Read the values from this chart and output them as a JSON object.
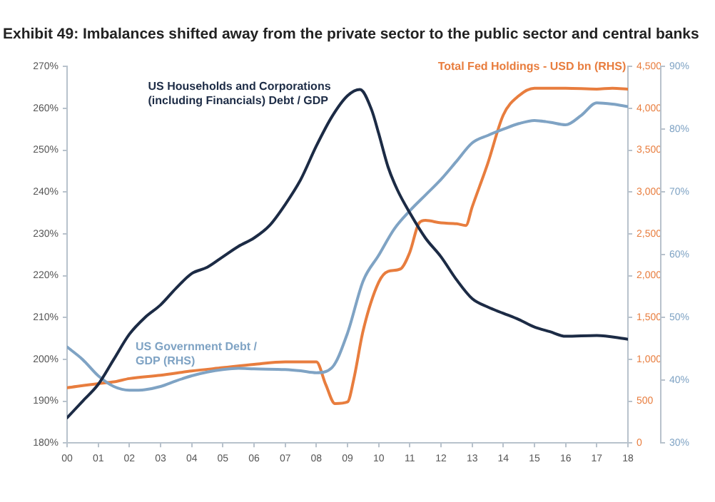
{
  "chart_data": {
    "type": "line",
    "title": "Exhibit 49: Imbalances shifted away from the private sector to the public sector and central banks",
    "xlim": [
      2000,
      2018
    ],
    "xticks": [
      {
        "value": 2000,
        "label": "00"
      },
      {
        "value": 2001,
        "label": "01"
      },
      {
        "value": 2002,
        "label": "02"
      },
      {
        "value": 2003,
        "label": "03"
      },
      {
        "value": 2004,
        "label": "04"
      },
      {
        "value": 2005,
        "label": "05"
      },
      {
        "value": 2006,
        "label": "06"
      },
      {
        "value": 2007,
        "label": "07"
      },
      {
        "value": 2008,
        "label": "08"
      },
      {
        "value": 2009,
        "label": "09"
      },
      {
        "value": 2010,
        "label": "10"
      },
      {
        "value": 2011,
        "label": "11"
      },
      {
        "value": 2012,
        "label": "12"
      },
      {
        "value": 2013,
        "label": "13"
      },
      {
        "value": 2014,
        "label": "14"
      },
      {
        "value": 2015,
        "label": "15"
      },
      {
        "value": 2016,
        "label": "16"
      },
      {
        "value": 2017,
        "label": "17"
      },
      {
        "value": 2018,
        "label": "18"
      }
    ],
    "ylim": [
      180,
      270
    ],
    "yticks": [
      {
        "value": 180,
        "label": "180%"
      },
      {
        "value": 190,
        "label": "190%"
      },
      {
        "value": 200,
        "label": "200%"
      },
      {
        "value": 210,
        "label": "210%"
      },
      {
        "value": 220,
        "label": "220%"
      },
      {
        "value": 230,
        "label": "230%"
      },
      {
        "value": 240,
        "label": "240%"
      },
      {
        "value": 250,
        "label": "250%"
      },
      {
        "value": 260,
        "label": "260%"
      },
      {
        "value": 270,
        "label": "270%"
      }
    ],
    "y2lim": [
      0,
      4500
    ],
    "y2ticks": [
      0,
      500,
      {
        "value": 1000,
        "label": "1,000"
      },
      {
        "value": 1500,
        "label": "1,500"
      },
      {
        "value": 2000,
        "label": "2,000"
      },
      {
        "value": 2500,
        "label": "2,500"
      },
      {
        "value": 3000,
        "label": "3,000"
      },
      {
        "value": 3500,
        "label": "3,500"
      },
      {
        "value": 4000,
        "label": "4,000"
      },
      {
        "value": 4500,
        "label": "4,500"
      }
    ],
    "y3lim": [
      30,
      90
    ],
    "y3ticks": [
      {
        "value": 30,
        "label": "30%"
      },
      {
        "value": 40,
        "label": "40%"
      },
      {
        "value": 50,
        "label": "50%"
      },
      {
        "value": 60,
        "label": "60%"
      },
      {
        "value": 70,
        "label": "70%"
      },
      {
        "value": 80,
        "label": "80%"
      },
      {
        "value": 90,
        "label": "90%"
      }
    ],
    "grid": false,
    "legend": false,
    "marker": "none",
    "line_style": "solid",
    "series": [
      {
        "name": "US Households and Corporations (including Financials) Debt / GDP",
        "color": "#1c2b45",
        "x": [
          2000,
          2000.5,
          2001,
          2001.5,
          2002,
          2002.5,
          2003,
          2003.5,
          2004,
          2004.5,
          2005,
          2005.5,
          2006,
          2006.5,
          2007,
          2007.5,
          2008,
          2008.5,
          2009,
          2009.4,
          2009.77,
          2010,
          2010.3,
          2010.6,
          2011,
          2011.5,
          2012,
          2012.5,
          2013,
          2013.5,
          2014,
          2014.5,
          2015,
          2015.5,
          2016,
          2017,
          2018
        ],
        "values": [
          186,
          190,
          194,
          200,
          206,
          210,
          213,
          217,
          220.5,
          222,
          224.5,
          227,
          229,
          232,
          237,
          243,
          251,
          258,
          263,
          264.5,
          259.7,
          254,
          246,
          240.5,
          235,
          229,
          224.5,
          219,
          214.5,
          212.5,
          211,
          209.5,
          207.7,
          206.6,
          205.5,
          205.7,
          204.8
        ]
      },
      {
        "name": "US Government Debt / GDP (RHS)",
        "color": "#7fa3c4",
        "axis": "y3",
        "x": [
          2000,
          2000.5,
          2001,
          2001.5,
          2002,
          2002.5,
          2003,
          2003.5,
          2004,
          2004.5,
          2005,
          2005.5,
          2006,
          2007,
          2007.5,
          2008,
          2008.5,
          2009,
          2009.5,
          2010,
          2010.5,
          2011,
          2011.5,
          2012,
          2012.5,
          2013,
          2013.5,
          2014,
          2014.5,
          2015,
          2015.5,
          2016,
          2016.5,
          2017,
          2017.5,
          2018
        ],
        "values": [
          45.3,
          43.3,
          40.7,
          39,
          38.4,
          38.5,
          39,
          39.9,
          40.7,
          41.3,
          41.7,
          41.9,
          41.8,
          41.7,
          41.5,
          41.2,
          42,
          47.5,
          55.8,
          59.9,
          64.1,
          67,
          69.5,
          72,
          74.9,
          77.8,
          79,
          80,
          80.9,
          81.4,
          81.1,
          80.7,
          82.2,
          84.2,
          84,
          83.6
        ]
      },
      {
        "name": "Total Fed Holdings - USD bn (RHS)",
        "color": "#e87d3e",
        "axis": "y2",
        "x": [
          2000,
          2001,
          2001.5,
          2002,
          2003,
          2004,
          2005,
          2006,
          2007,
          2008,
          2008.3,
          2008.6,
          2009,
          2009.2,
          2009.5,
          2010,
          2010.3,
          2010.7,
          2011,
          2011.3,
          2011.5,
          2012,
          2012.5,
          2012.8,
          2013,
          2013.5,
          2014,
          2014.5,
          2015,
          2016,
          2017,
          2017.5,
          2018
        ],
        "values": [
          660,
          710,
          730,
          770,
          810,
          860,
          900,
          940,
          970,
          970,
          700,
          470,
          490,
          760,
          1340,
          1920,
          2050,
          2080,
          2280,
          2630,
          2660,
          2630,
          2620,
          2600,
          2820,
          3340,
          3920,
          4150,
          4240,
          4240,
          4230,
          4240,
          4230
        ]
      }
    ]
  }
}
